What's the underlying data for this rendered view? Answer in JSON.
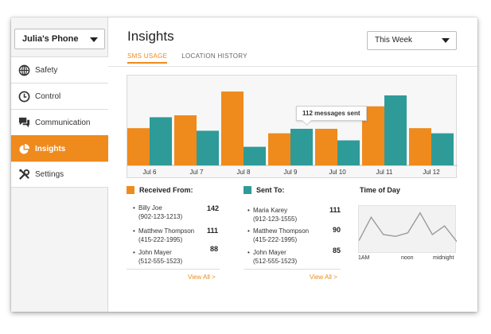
{
  "sidebar": {
    "phone_select": "Julia's Phone",
    "items": [
      {
        "label": "Safety",
        "icon": "globe-icon",
        "active": false
      },
      {
        "label": "Control",
        "icon": "clock-icon",
        "active": false
      },
      {
        "label": "Communication",
        "icon": "chat-icon",
        "active": false
      },
      {
        "label": "Insights",
        "icon": "pie-chart-icon",
        "active": true
      },
      {
        "label": "Settings",
        "icon": "tools-icon",
        "active": false
      }
    ]
  },
  "header": {
    "title": "Insights",
    "range_select": "This Week",
    "tabs": [
      {
        "label": "SMS USAGE",
        "active": true
      },
      {
        "label": "LOCATION HISTORY",
        "active": false
      }
    ]
  },
  "colors": {
    "received": "#ef8a1d",
    "sent": "#2e9b98",
    "accent": "#ef8a1d"
  },
  "chart_data": {
    "type": "bar",
    "categories": [
      "Jul 6",
      "Jul 7",
      "Jul 8",
      "Jul 9",
      "Jul 10",
      "Jul 11",
      "Jul 12"
    ],
    "series": [
      {
        "name": "Received From",
        "values": [
          58,
          78,
          115,
          50,
          57,
          92,
          58
        ]
      },
      {
        "name": "Sent To",
        "values": [
          75,
          54,
          29,
          57,
          39,
          109,
          50
        ]
      }
    ],
    "ylim": [
      0,
      130
    ],
    "tooltip": "112 messages sent",
    "grid": false
  },
  "received": {
    "heading": "Received From:",
    "entries": [
      {
        "name": "Billy Joe",
        "phone": "(902-123-1213)",
        "count": "142"
      },
      {
        "name": "Matthew Thompson",
        "phone": "(415-222-1995)",
        "count": "111"
      },
      {
        "name": "John Mayer",
        "phone": "(512-555-1523)",
        "count": "88"
      }
    ],
    "view_all": "View All >"
  },
  "sent": {
    "heading": "Sent To:",
    "entries": [
      {
        "name": "Maria Karey",
        "phone": "(912-123-1555)",
        "count": "111"
      },
      {
        "name": "Matthew Thompson",
        "phone": "(415-222-1995)",
        "count": "90"
      },
      {
        "name": "John Mayer",
        "phone": "(512-555-1523)",
        "count": "85"
      }
    ],
    "view_all": "View All >"
  },
  "time_of_day": {
    "heading": "Time of Day",
    "labels": [
      "1AM",
      "noon",
      "midnight"
    ],
    "values": [
      15,
      42,
      22,
      20,
      24,
      47,
      22,
      32,
      14
    ]
  }
}
